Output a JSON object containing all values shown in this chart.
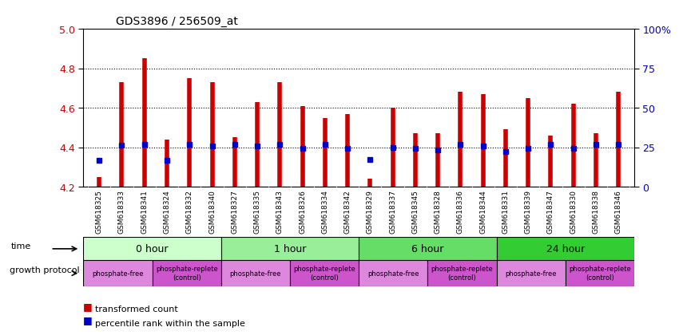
{
  "title": "GDS3896 / 256509_at",
  "samples": [
    "GSM618325",
    "GSM618333",
    "GSM618341",
    "GSM618324",
    "GSM618332",
    "GSM618340",
    "GSM618327",
    "GSM618335",
    "GSM618343",
    "GSM618326",
    "GSM618334",
    "GSM618342",
    "GSM618329",
    "GSM618337",
    "GSM618345",
    "GSM618328",
    "GSM618336",
    "GSM618344",
    "GSM618331",
    "GSM618339",
    "GSM618347",
    "GSM618330",
    "GSM618338",
    "GSM618346"
  ],
  "red_values": [
    4.25,
    4.73,
    4.85,
    4.44,
    4.75,
    4.73,
    4.45,
    4.63,
    4.73,
    4.61,
    4.55,
    4.57,
    4.24,
    4.6,
    4.47,
    4.47,
    4.68,
    4.67,
    4.49,
    4.65,
    4.46,
    4.62,
    4.47,
    4.68
  ],
  "blue_values": [
    4.335,
    4.41,
    4.415,
    4.335,
    4.415,
    4.405,
    4.415,
    4.405,
    4.415,
    4.395,
    4.415,
    4.395,
    4.34,
    4.4,
    4.395,
    4.385,
    4.415,
    4.405,
    4.38,
    4.395,
    4.415,
    4.395,
    4.415,
    4.415
  ],
  "ylim_left": [
    4.2,
    5.0
  ],
  "yticks_left": [
    4.2,
    4.4,
    4.6,
    4.8,
    5.0
  ],
  "yticks_right": [
    0,
    25,
    50,
    75,
    100
  ],
  "ytick_right_labels": [
    "0",
    "25",
    "50",
    "75",
    "100%"
  ],
  "hlines": [
    4.4,
    4.6,
    4.8
  ],
  "bar_bottom": 4.2,
  "time_groups": [
    {
      "label": "0 hour",
      "start": 0,
      "end": 6,
      "color": "#ccffcc"
    },
    {
      "label": "1 hour",
      "start": 6,
      "end": 12,
      "color": "#99ee99"
    },
    {
      "label": "6 hour",
      "start": 12,
      "end": 18,
      "color": "#66dd66"
    },
    {
      "label": "24 hour",
      "start": 18,
      "end": 24,
      "color": "#33cc33"
    }
  ],
  "protocol_groups": [
    {
      "label": "phosphate-free",
      "start": 0,
      "end": 3,
      "color": "#dd88dd"
    },
    {
      "label": "phosphate-replete\n(control)",
      "start": 3,
      "end": 6,
      "color": "#cc55cc"
    },
    {
      "label": "phosphate-free",
      "start": 6,
      "end": 9,
      "color": "#dd88dd"
    },
    {
      "label": "phosphate-replete\n(control)",
      "start": 9,
      "end": 12,
      "color": "#cc55cc"
    },
    {
      "label": "phosphate-free",
      "start": 12,
      "end": 15,
      "color": "#dd88dd"
    },
    {
      "label": "phosphate-replete\n(control)",
      "start": 15,
      "end": 18,
      "color": "#cc55cc"
    },
    {
      "label": "phosphate-free",
      "start": 18,
      "end": 21,
      "color": "#dd88dd"
    },
    {
      "label": "phosphate-replete\n(control)",
      "start": 21,
      "end": 24,
      "color": "#cc55cc"
    }
  ],
  "red_color": "#cc0000",
  "blue_color": "#0000cc",
  "left_label_color": "#cc0000",
  "right_label_color": "#0000cc",
  "tick_label_bg": "#c8c8c8"
}
